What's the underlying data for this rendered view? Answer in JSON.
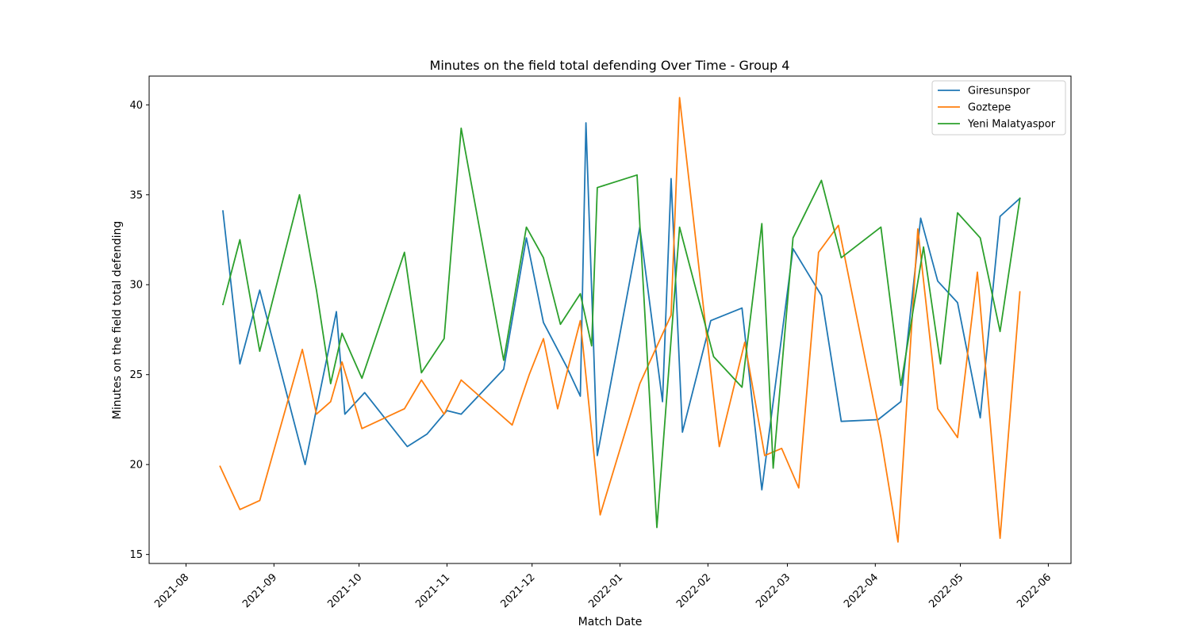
{
  "chart_data": {
    "type": "line",
    "title": "Minutes on the field total defending Over Time - Group 4",
    "xlabel": "Match Date",
    "ylabel": "Minutes on the field total defending",
    "xlim": [
      "2021-07-19",
      "2022-06-09"
    ],
    "ylim": [
      14.5,
      41.6
    ],
    "x_ticks": [
      "2021-08",
      "2021-09",
      "2021-10",
      "2021-11",
      "2021-12",
      "2022-01",
      "2022-02",
      "2022-03",
      "2022-04",
      "2022-05",
      "2022-06"
    ],
    "y_ticks": [
      15,
      20,
      25,
      30,
      35,
      40
    ],
    "grid": false,
    "legend_position": "top-right",
    "series": [
      {
        "name": "Giresunspor",
        "color": "#1f77b4",
        "points": [
          [
            "2021-08-14",
            34.1
          ],
          [
            "2021-08-20",
            25.6
          ],
          [
            "2021-08-27",
            29.7
          ],
          [
            "2021-09-12",
            20.0
          ],
          [
            "2021-09-23",
            28.5
          ],
          [
            "2021-09-26",
            22.8
          ],
          [
            "2021-10-03",
            24.0
          ],
          [
            "2021-10-18",
            21.0
          ],
          [
            "2021-10-25",
            21.7
          ],
          [
            "2021-11-01",
            23.0
          ],
          [
            "2021-11-06",
            22.8
          ],
          [
            "2021-11-21",
            25.3
          ],
          [
            "2021-11-29",
            32.6
          ],
          [
            "2021-12-05",
            27.9
          ],
          [
            "2021-12-13",
            25.5
          ],
          [
            "2021-12-18",
            23.8
          ],
          [
            "2021-12-20",
            39.0
          ],
          [
            "2021-12-24",
            20.5
          ],
          [
            "2022-01-08",
            33.2
          ],
          [
            "2022-01-16",
            23.5
          ],
          [
            "2022-01-19",
            35.9
          ],
          [
            "2022-01-23",
            21.8
          ],
          [
            "2022-02-02",
            28.0
          ],
          [
            "2022-02-13",
            28.7
          ],
          [
            "2022-02-20",
            18.6
          ],
          [
            "2022-03-03",
            32.0
          ],
          [
            "2022-03-13",
            29.4
          ],
          [
            "2022-03-20",
            22.4
          ],
          [
            "2022-04-02",
            22.5
          ],
          [
            "2022-04-10",
            23.5
          ],
          [
            "2022-04-17",
            33.7
          ],
          [
            "2022-04-23",
            30.2
          ],
          [
            "2022-04-30",
            29.0
          ],
          [
            "2022-05-08",
            22.6
          ],
          [
            "2022-05-15",
            33.8
          ],
          [
            "2022-05-22",
            34.8
          ]
        ]
      },
      {
        "name": "Goztepe",
        "color": "#ff7f0e",
        "points": [
          [
            "2021-08-13",
            19.9
          ],
          [
            "2021-08-20",
            17.5
          ],
          [
            "2021-08-27",
            18.0
          ],
          [
            "2021-09-11",
            26.4
          ],
          [
            "2021-09-16",
            22.8
          ],
          [
            "2021-09-21",
            23.5
          ],
          [
            "2021-09-25",
            25.7
          ],
          [
            "2021-10-02",
            22.0
          ],
          [
            "2021-10-17",
            23.1
          ],
          [
            "2021-10-23",
            24.7
          ],
          [
            "2021-10-31",
            22.8
          ],
          [
            "2021-11-06",
            24.7
          ],
          [
            "2021-11-24",
            22.2
          ],
          [
            "2021-11-30",
            25.0
          ],
          [
            "2021-12-05",
            27.0
          ],
          [
            "2021-12-10",
            23.1
          ],
          [
            "2021-12-18",
            28.0
          ],
          [
            "2021-12-25",
            17.2
          ],
          [
            "2022-01-08",
            24.5
          ],
          [
            "2022-01-19",
            28.3
          ],
          [
            "2022-01-22",
            40.4
          ],
          [
            "2022-02-05",
            21.0
          ],
          [
            "2022-02-14",
            26.8
          ],
          [
            "2022-02-21",
            20.5
          ],
          [
            "2022-02-27",
            20.9
          ],
          [
            "2022-03-05",
            18.7
          ],
          [
            "2022-03-12",
            31.8
          ],
          [
            "2022-03-19",
            33.3
          ],
          [
            "2022-04-03",
            21.5
          ],
          [
            "2022-04-09",
            15.7
          ],
          [
            "2022-04-16",
            33.1
          ],
          [
            "2022-04-23",
            23.1
          ],
          [
            "2022-04-30",
            21.5
          ],
          [
            "2022-05-07",
            30.7
          ],
          [
            "2022-05-15",
            15.9
          ],
          [
            "2022-05-22",
            29.6
          ]
        ]
      },
      {
        "name": "Yeni Malatyaspor",
        "color": "#2ca02c",
        "points": [
          [
            "2021-08-14",
            28.9
          ],
          [
            "2021-08-20",
            32.5
          ],
          [
            "2021-08-27",
            26.3
          ],
          [
            "2021-09-10",
            35.0
          ],
          [
            "2021-09-16",
            29.7
          ],
          [
            "2021-09-21",
            24.5
          ],
          [
            "2021-09-25",
            27.3
          ],
          [
            "2021-10-02",
            24.8
          ],
          [
            "2021-10-17",
            31.8
          ],
          [
            "2021-10-23",
            25.1
          ],
          [
            "2021-10-31",
            27.0
          ],
          [
            "2021-11-06",
            38.7
          ],
          [
            "2021-11-21",
            25.8
          ],
          [
            "2021-11-29",
            33.2
          ],
          [
            "2021-12-05",
            31.5
          ],
          [
            "2021-12-11",
            27.8
          ],
          [
            "2021-12-18",
            29.5
          ],
          [
            "2021-12-22",
            26.6
          ],
          [
            "2021-12-24",
            35.4
          ],
          [
            "2022-01-07",
            36.1
          ],
          [
            "2022-01-14",
            16.5
          ],
          [
            "2022-01-22",
            33.2
          ],
          [
            "2022-02-03",
            26.0
          ],
          [
            "2022-02-13",
            24.3
          ],
          [
            "2022-02-20",
            33.4
          ],
          [
            "2022-02-24",
            19.8
          ],
          [
            "2022-03-03",
            32.6
          ],
          [
            "2022-03-13",
            35.8
          ],
          [
            "2022-03-20",
            31.5
          ],
          [
            "2022-04-03",
            33.2
          ],
          [
            "2022-04-10",
            24.4
          ],
          [
            "2022-04-18",
            32.1
          ],
          [
            "2022-04-24",
            25.6
          ],
          [
            "2022-04-30",
            34.0
          ],
          [
            "2022-05-08",
            32.6
          ],
          [
            "2022-05-15",
            27.4
          ],
          [
            "2022-05-22",
            34.8
          ]
        ]
      }
    ]
  }
}
